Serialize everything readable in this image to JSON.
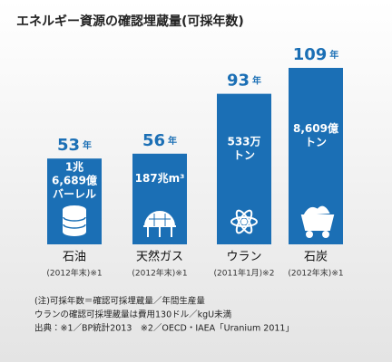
{
  "chart_data": {
    "type": "bar",
    "title": "エネルギー資源の確認埋蔵量(可採年数)",
    "categories": [
      "石油",
      "天然ガス",
      "ウラン",
      "石炭"
    ],
    "values": [
      53,
      56,
      93,
      109
    ],
    "unit": "年",
    "color": "#1b6fb5",
    "reserves": [
      [
        "1兆",
        "6,689億",
        "バーレル"
      ],
      [
        "187兆m³"
      ],
      [
        "533万",
        "トン"
      ],
      [
        "8,609億",
        "トン"
      ]
    ],
    "sources": [
      "(2012年末)※1",
      "(2012年末)※1",
      "(2011年1月)※2",
      "(2012年末)※1"
    ],
    "notes": [
      "(注)可採年数＝確認可採埋蔵量／年間生産量",
      "ウランの確認可採埋蔵量は費用130ドル／kgU未満",
      "出典：※1／BP統計2013　※2／OECD・IAEA「Uranium 2011」"
    ]
  }
}
